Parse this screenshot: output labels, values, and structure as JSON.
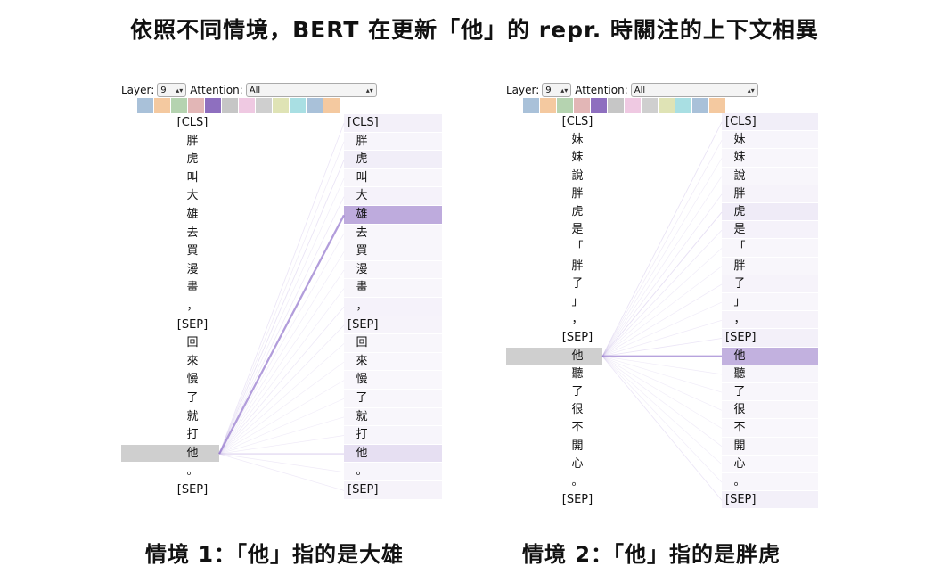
{
  "title": "依照不同情境，BERT 在更新「他」的 repr. 時關注的上下文相異",
  "controls": {
    "layer_label": "Layer:",
    "layer_value": "9",
    "attention_label": "Attention:",
    "attention_value": "All"
  },
  "swatch_colors": [
    "#a9c1d9",
    "#f4c9a0",
    "#b5d3b0",
    "#e2b6b6",
    "#8e6fbf",
    "#c6c6c6",
    "#efc9e2",
    "#cfcfcf",
    "#dfe3b5",
    "#a9dfe3",
    "#a9c1d9",
    "#f4c9a0"
  ],
  "selected_swatch": 4,
  "scenarios": [
    {
      "caption": "情境 1：「他」指的是大雄",
      "left_tokens": [
        "[CLS]",
        "胖",
        "虎",
        "叫",
        "大",
        "雄",
        "去",
        "買",
        "漫",
        "畫",
        "，",
        "[SEP]",
        "回",
        "來",
        "慢",
        "了",
        "就",
        "打",
        "他",
        "。",
        "[SEP]"
      ],
      "right_tokens": [
        "[CLS]",
        "胖",
        "虎",
        "叫",
        "大",
        "雄",
        "去",
        "買",
        "漫",
        "畫",
        "，",
        "[SEP]",
        "回",
        "來",
        "慢",
        "了",
        "就",
        "打",
        "他",
        "。",
        "[SEP]"
      ],
      "query_index": 18,
      "weights": [
        0.08,
        0.04,
        0.1,
        0.03,
        0.06,
        0.65,
        0.03,
        0.03,
        0.03,
        0.03,
        0.06,
        0.05,
        0.03,
        0.02,
        0.02,
        0.03,
        0.03,
        0.04,
        0.22,
        0.04,
        0.05
      ]
    },
    {
      "caption": "情境 2：「他」指的是胖虎",
      "left_tokens": [
        "[CLS]",
        "妹",
        "妹",
        "說",
        "胖",
        "虎",
        "是",
        "「",
        "胖",
        "子",
        "」",
        "，",
        "[SEP]",
        "他",
        "聽",
        "了",
        "很",
        "不",
        "開",
        "心",
        "。",
        "[SEP]"
      ],
      "right_tokens": [
        "[CLS]",
        "妹",
        "妹",
        "說",
        "胖",
        "虎",
        "是",
        "「",
        "胖",
        "子",
        "」",
        "，",
        "[SEP]",
        "他",
        "聽",
        "了",
        "很",
        "不",
        "開",
        "心",
        "。",
        "[SEP]"
      ],
      "query_index": 13,
      "weights": [
        0.1,
        0.04,
        0.03,
        0.03,
        0.05,
        0.12,
        0.06,
        0.03,
        0.03,
        0.05,
        0.03,
        0.05,
        0.08,
        0.6,
        0.04,
        0.03,
        0.03,
        0.02,
        0.03,
        0.02,
        0.03,
        0.08
      ]
    }
  ]
}
